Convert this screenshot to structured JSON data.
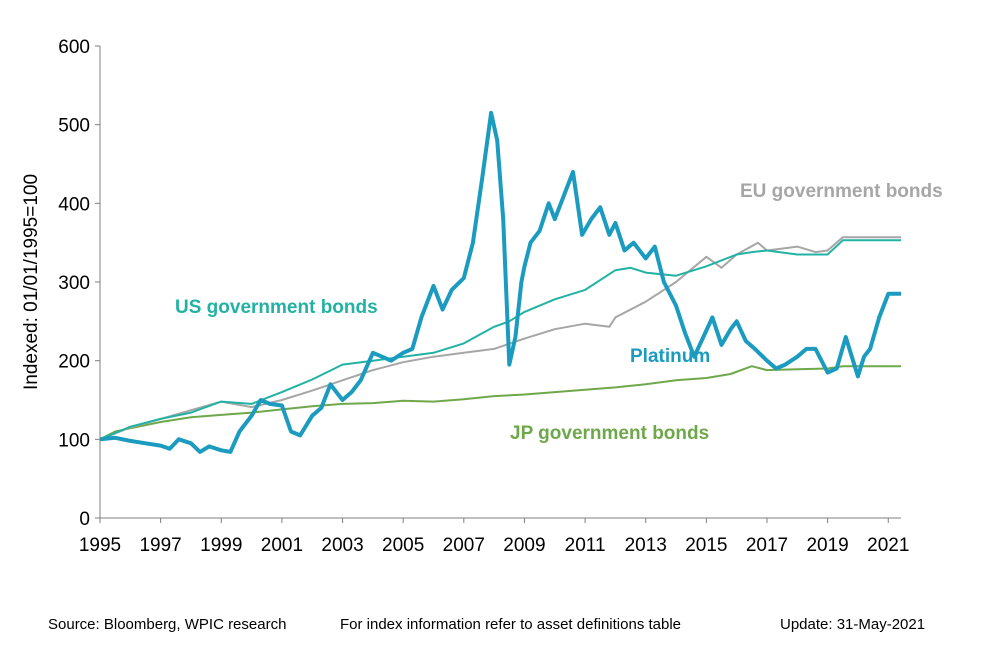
{
  "chart_data": {
    "type": "line",
    "ylabel": "Indexed: 01/01/1995=100",
    "xlabel": "",
    "xlim": [
      1995,
      2021.42
    ],
    "ylim": [
      0,
      600
    ],
    "xticks": [
      "1995",
      "1997",
      "1999",
      "2001",
      "2003",
      "2005",
      "2007",
      "2009",
      "2011",
      "2013",
      "2015",
      "2017",
      "2019",
      "2021"
    ],
    "yticks": [
      "0",
      "100",
      "200",
      "300",
      "400",
      "500",
      "600"
    ],
    "grid": false,
    "series": [
      {
        "name": "JP government bonds",
        "color": "#6fa84a",
        "x": [
          1995,
          1995.5,
          1996,
          1997,
          1998,
          1999,
          2000,
          2001,
          2002,
          2003,
          2004,
          2005,
          2006,
          2007,
          2008,
          2009,
          2010,
          2011,
          2012,
          2013,
          2014,
          2015,
          2015.8,
          2016.5,
          2017,
          2018,
          2019,
          2019.5,
          2020,
          2021,
          2021.42
        ],
        "y": [
          100,
          110,
          114,
          122,
          128,
          131,
          134,
          138,
          142,
          145,
          146,
          149,
          148,
          151,
          155,
          157,
          160,
          163,
          166,
          170,
          175,
          178,
          183,
          193,
          188,
          189,
          190,
          193,
          193,
          193,
          193
        ]
      },
      {
        "name": "EU government bonds",
        "color": "#a6a6a6",
        "x": [
          1995,
          1996,
          1997,
          1998,
          1999,
          2000,
          2001,
          2002,
          2003,
          2004,
          2005,
          2006,
          2007,
          2008,
          2009,
          2010,
          2011,
          2011.8,
          2012,
          2013,
          2014,
          2015,
          2015.5,
          2016,
          2016.7,
          2017,
          2018,
          2018.6,
          2019,
          2019.5,
          2020,
          2021,
          2021.42
        ],
        "y": [
          100,
          115,
          126,
          137,
          148,
          141,
          150,
          162,
          175,
          188,
          198,
          205,
          210,
          215,
          228,
          240,
          247,
          243,
          255,
          275,
          300,
          332,
          318,
          335,
          350,
          340,
          345,
          338,
          340,
          357,
          357,
          357,
          357
        ]
      },
      {
        "name": "US government bonds",
        "color": "#22b2a4",
        "x": [
          1995,
          1996,
          1997,
          1998,
          1999,
          2000,
          2001,
          2002,
          2003,
          2004,
          2005,
          2006,
          2007,
          2008,
          2008.5,
          2009,
          2010,
          2011,
          2012,
          2012.5,
          2013,
          2014,
          2015,
          2016,
          2016.5,
          2017,
          2018,
          2019,
          2019.5,
          2020,
          2021,
          2021.42
        ],
        "y": [
          100,
          116,
          126,
          134,
          148,
          145,
          160,
          176,
          195,
          200,
          205,
          210,
          222,
          243,
          250,
          262,
          278,
          290,
          315,
          318,
          312,
          308,
          320,
          335,
          338,
          340,
          335,
          335,
          353,
          353,
          353,
          353
        ]
      },
      {
        "name": "Platinum",
        "color": "#1a9bbf",
        "x": [
          1995,
          1995.5,
          1996,
          1996.5,
          1997,
          1997.3,
          1997.6,
          1998,
          1998.3,
          1998.6,
          1999,
          1999.3,
          1999.6,
          2000,
          2000.3,
          2000.6,
          2001,
          2001.3,
          2001.6,
          2002,
          2002.3,
          2002.6,
          2003,
          2003.3,
          2003.6,
          2004,
          2004.3,
          2004.6,
          2005,
          2005.3,
          2005.6,
          2006,
          2006.3,
          2006.6,
          2007,
          2007.3,
          2007.6,
          2007.9,
          2008.1,
          2008.3,
          2008.5,
          2008.7,
          2008.9,
          2009,
          2009.2,
          2009.5,
          2009.8,
          2010,
          2010.3,
          2010.6,
          2010.9,
          2011.2,
          2011.5,
          2011.8,
          2012,
          2012.3,
          2012.6,
          2013,
          2013.3,
          2013.6,
          2014,
          2014.3,
          2014.6,
          2014.9,
          2015.2,
          2015.5,
          2015.8,
          2016,
          2016.3,
          2016.6,
          2017,
          2017.3,
          2017.6,
          2018,
          2018.3,
          2018.6,
          2019,
          2019.3,
          2019.6,
          2020,
          2020.2,
          2020.4,
          2020.7,
          2021,
          2021.2,
          2021.42
        ],
        "y": [
          100,
          102,
          98,
          95,
          92,
          88,
          100,
          95,
          84,
          91,
          86,
          84,
          110,
          130,
          150,
          145,
          143,
          110,
          105,
          130,
          140,
          170,
          150,
          160,
          175,
          210,
          205,
          200,
          210,
          215,
          255,
          295,
          265,
          290,
          305,
          350,
          430,
          515,
          480,
          380,
          195,
          230,
          300,
          320,
          350,
          365,
          400,
          380,
          410,
          440,
          360,
          380,
          395,
          360,
          375,
          340,
          350,
          330,
          345,
          300,
          270,
          235,
          205,
          230,
          255,
          220,
          240,
          250,
          225,
          215,
          200,
          190,
          195,
          205,
          215,
          215,
          185,
          190,
          230,
          180,
          205,
          215,
          255,
          285,
          285,
          285
        ]
      }
    ],
    "annotations": {
      "eu": "EU government bonds",
      "us": "US government bonds",
      "platinum": "Platinum",
      "jp": "JP government bonds"
    }
  },
  "footer": {
    "source": "Source: Bloomberg, WPIC research",
    "index_info": "For index information refer to asset definitions table",
    "update": "Update: 31-May-2021"
  }
}
